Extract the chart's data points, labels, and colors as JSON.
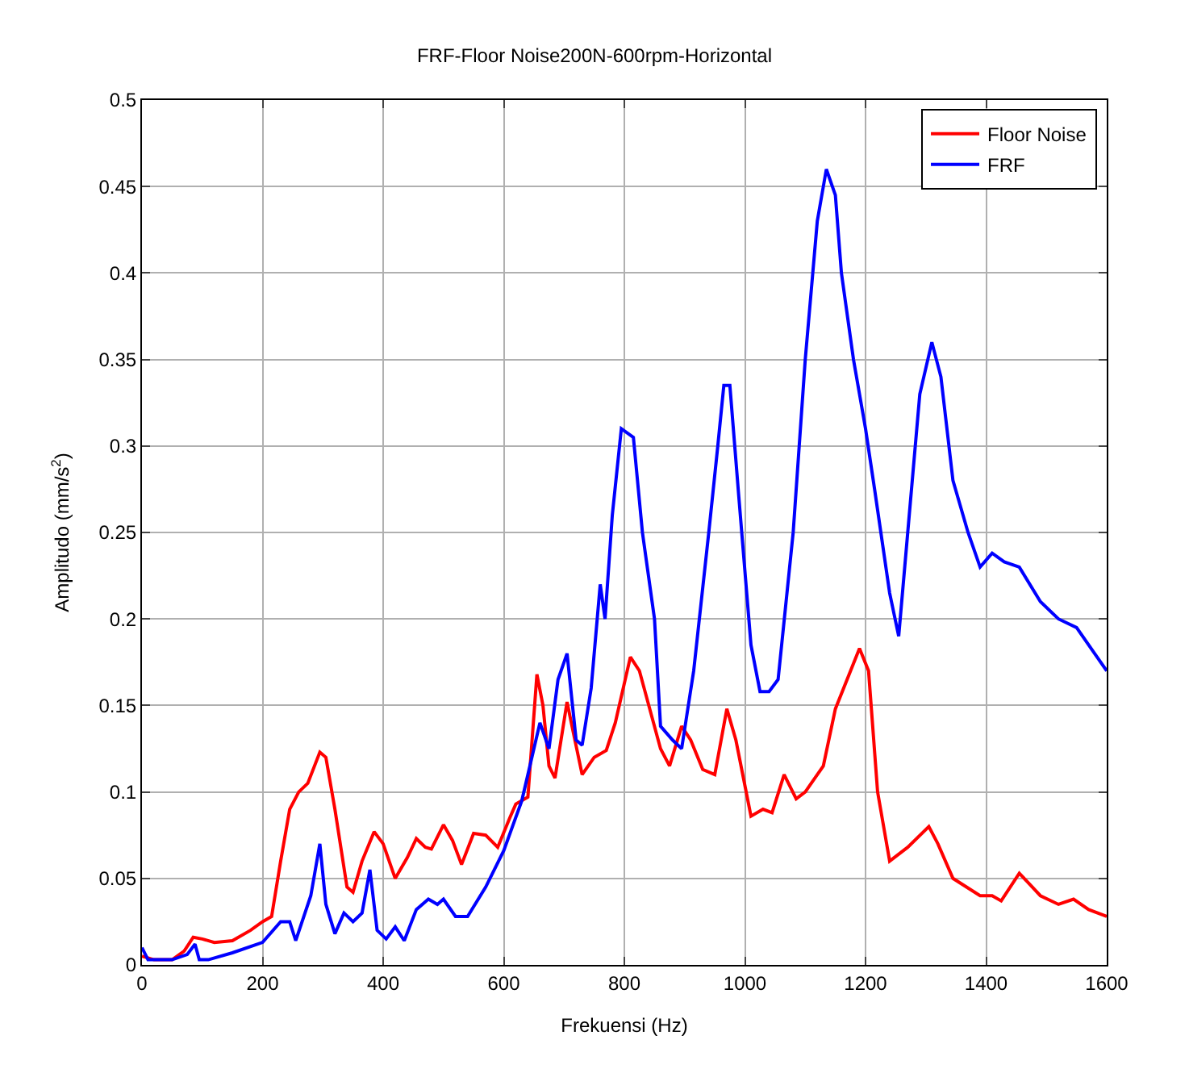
{
  "chart_data": {
    "type": "line",
    "title": "FRF-Floor Noise200N-600rpm-Horizontal",
    "xlabel": "Frekuensi (Hz)",
    "ylabel": "Amplitudo (mm/s$^{2}$)",
    "xlim": [
      0,
      1600
    ],
    "xticks": [
      0,
      200,
      400,
      600,
      800,
      1000,
      1200,
      1400,
      1600
    ],
    "ylim": [
      0,
      0.5
    ],
    "yticks": [
      0,
      0.05,
      0.1,
      0.15,
      0.2,
      0.25,
      0.3,
      0.35,
      0.4,
      0.45,
      0.5
    ],
    "grid": true,
    "legend": "top right",
    "line_style": "solid",
    "marker": "none",
    "series": [
      {
        "name": "Floor Noise",
        "color": "#ff0000",
        "x": [
          0,
          20,
          50,
          70,
          85,
          100,
          120,
          150,
          180,
          200,
          215,
          230,
          245,
          260,
          275,
          295,
          305,
          320,
          340,
          350,
          365,
          385,
          400,
          420,
          440,
          455,
          470,
          480,
          500,
          515,
          530,
          550,
          570,
          590,
          610,
          620,
          640,
          655,
          665,
          675,
          685,
          705,
          715,
          730,
          750,
          770,
          785,
          810,
          825,
          860,
          875,
          895,
          910,
          930,
          950,
          970,
          985,
          1010,
          1030,
          1045,
          1065,
          1085,
          1100,
          1130,
          1150,
          1190,
          1205,
          1220,
          1240,
          1270,
          1305,
          1320,
          1345,
          1390,
          1410,
          1425,
          1455,
          1490,
          1520,
          1545,
          1570,
          1600
        ],
        "values": [
          0.005,
          0.003,
          0.003,
          0.008,
          0.016,
          0.015,
          0.013,
          0.014,
          0.02,
          0.025,
          0.028,
          0.06,
          0.09,
          0.1,
          0.105,
          0.123,
          0.12,
          0.09,
          0.045,
          0.042,
          0.06,
          0.077,
          0.07,
          0.05,
          0.062,
          0.073,
          0.068,
          0.067,
          0.081,
          0.072,
          0.058,
          0.076,
          0.075,
          0.068,
          0.085,
          0.093,
          0.097,
          0.168,
          0.15,
          0.115,
          0.108,
          0.152,
          0.135,
          0.11,
          0.12,
          0.124,
          0.14,
          0.178,
          0.17,
          0.125,
          0.115,
          0.138,
          0.13,
          0.113,
          0.11,
          0.148,
          0.13,
          0.086,
          0.09,
          0.088,
          0.11,
          0.096,
          0.1,
          0.115,
          0.148,
          0.183,
          0.17,
          0.1,
          0.06,
          0.068,
          0.08,
          0.07,
          0.05,
          0.04,
          0.04,
          0.037,
          0.053,
          0.04,
          0.035,
          0.038,
          0.032,
          0.028
        ]
      },
      {
        "name": "FRF",
        "color": "#0000ff",
        "x": [
          0,
          10,
          50,
          75,
          88,
          95,
          110,
          150,
          200,
          230,
          245,
          255,
          280,
          295,
          305,
          320,
          335,
          350,
          365,
          378,
          390,
          405,
          420,
          435,
          455,
          475,
          490,
          500,
          520,
          540,
          570,
          600,
          630,
          660,
          675,
          690,
          705,
          720,
          730,
          745,
          760,
          768,
          780,
          795,
          815,
          830,
          850,
          860,
          880,
          895,
          915,
          940,
          955,
          965,
          975,
          990,
          1010,
          1025,
          1040,
          1055,
          1080,
          1100,
          1120,
          1135,
          1150,
          1160,
          1180,
          1200,
          1215,
          1240,
          1255,
          1270,
          1290,
          1310,
          1325,
          1345,
          1370,
          1390,
          1410,
          1430,
          1455,
          1490,
          1520,
          1550,
          1580,
          1600
        ],
        "values": [
          0.01,
          0.003,
          0.003,
          0.006,
          0.012,
          0.003,
          0.003,
          0.007,
          0.013,
          0.025,
          0.025,
          0.014,
          0.04,
          0.07,
          0.035,
          0.018,
          0.03,
          0.025,
          0.03,
          0.055,
          0.02,
          0.015,
          0.022,
          0.014,
          0.032,
          0.038,
          0.035,
          0.038,
          0.028,
          0.028,
          0.045,
          0.066,
          0.095,
          0.14,
          0.125,
          0.165,
          0.18,
          0.13,
          0.127,
          0.16,
          0.22,
          0.2,
          0.26,
          0.31,
          0.305,
          0.25,
          0.2,
          0.138,
          0.13,
          0.125,
          0.17,
          0.25,
          0.3,
          0.335,
          0.335,
          0.27,
          0.185,
          0.158,
          0.158,
          0.165,
          0.25,
          0.35,
          0.43,
          0.46,
          0.445,
          0.4,
          0.35,
          0.31,
          0.275,
          0.215,
          0.19,
          0.25,
          0.33,
          0.36,
          0.34,
          0.28,
          0.25,
          0.23,
          0.238,
          0.233,
          0.23,
          0.21,
          0.2,
          0.195,
          0.18,
          0.17
        ]
      }
    ]
  }
}
